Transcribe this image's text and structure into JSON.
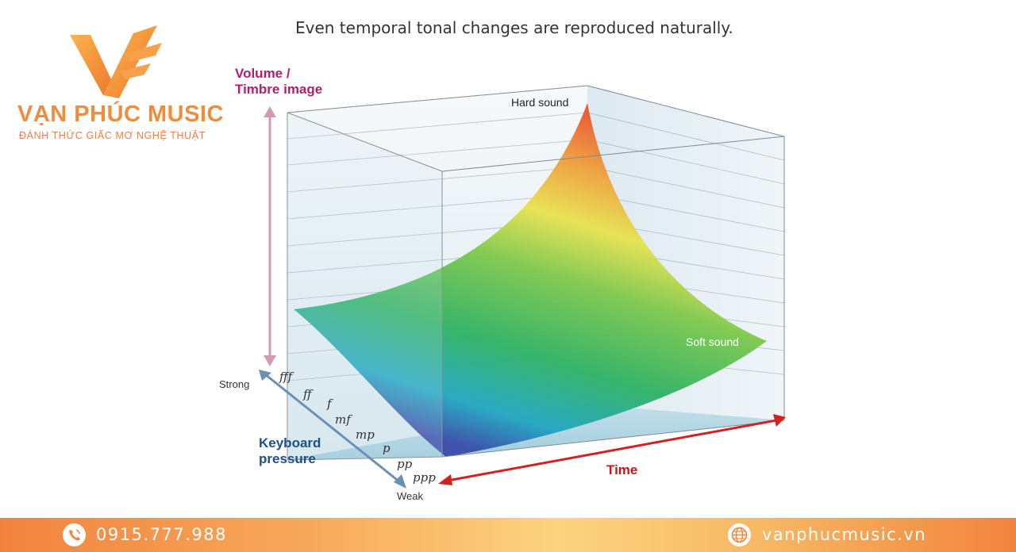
{
  "brand": {
    "name": "VẠN PHÚC MUSIC",
    "tagline": "ĐÁNH THỨC GIẤC MƠ NGHỆ THUẬT",
    "accent": "#f08c3c"
  },
  "diagram": {
    "title": "Even temporal tonal changes are reproduced naturally.",
    "vertical_axis_label": [
      "Volume /",
      "Timbre image"
    ],
    "vertical_axis_color": "#b0206c",
    "peak_label": "Hard sound",
    "low_label": "Soft sound",
    "time_label": "Time",
    "time_color": "#d42020",
    "pressure_label": [
      "Keyboard",
      "pressure"
    ],
    "pressure_color": "#1e4f86",
    "pressure_strong": "Strong",
    "pressure_weak": "Weak",
    "dynamics": [
      "fff",
      "ff",
      "f",
      "mf",
      "mp",
      "p",
      "pp",
      "ppp"
    ]
  },
  "footer": {
    "phone": "0915.777.988",
    "website": "vanphucmusic.vn",
    "phone_icon": "phone-icon",
    "web_icon": "globe-icon"
  }
}
